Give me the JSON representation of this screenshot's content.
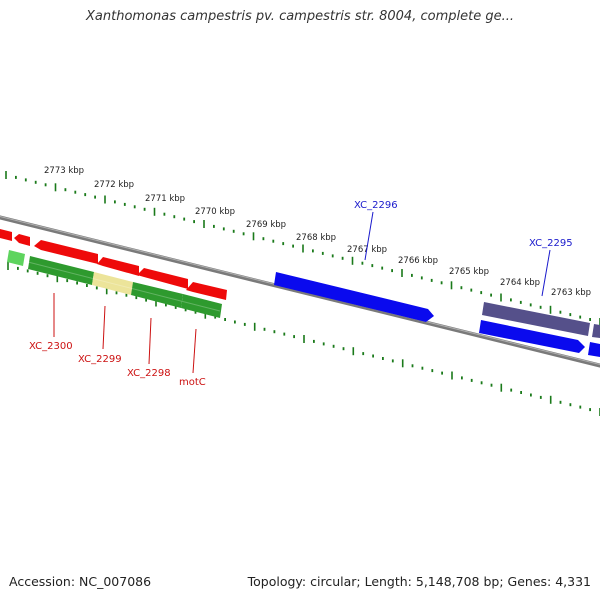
{
  "title": "Xanthomonas campestris pv. campestris str. 8004, complete ge...",
  "footer": {
    "accession": "Accession: NC_007086",
    "summary": "Topology: circular; Length: 5,148,708 bp; Genes: 4,331"
  },
  "colors": {
    "backbone": "#7a7a7a",
    "tick": "#1a7a1a",
    "forward_gene": "#0a0aee",
    "reverse_gene": "#ee0a0a",
    "label_forward": "#1a1acc",
    "label_reverse": "#cc1111",
    "green_feature": "#2e9a2e",
    "light_green_feature": "#5ed45e",
    "yellow_feature": "#ece49a",
    "purple_feature": "#55508a"
  },
  "ruler": {
    "unit": "kbp",
    "labels": [
      "2773 kbp",
      "2772 kbp",
      "2771 kbp",
      "2770 kbp",
      "2769 kbp",
      "2768 kbp",
      "2767 kbp",
      "2766 kbp",
      "2765 kbp",
      "2764 kbp",
      "2763 kbp"
    ]
  },
  "gene_labels": [
    {
      "name": "XC_2300",
      "strand": "reverse"
    },
    {
      "name": "XC_2299",
      "strand": "reverse"
    },
    {
      "name": "XC_2298",
      "strand": "reverse"
    },
    {
      "name": "motC",
      "strand": "reverse"
    },
    {
      "name": "XC_2296",
      "strand": "forward"
    },
    {
      "name": "XC_2295",
      "strand": "forward"
    }
  ]
}
